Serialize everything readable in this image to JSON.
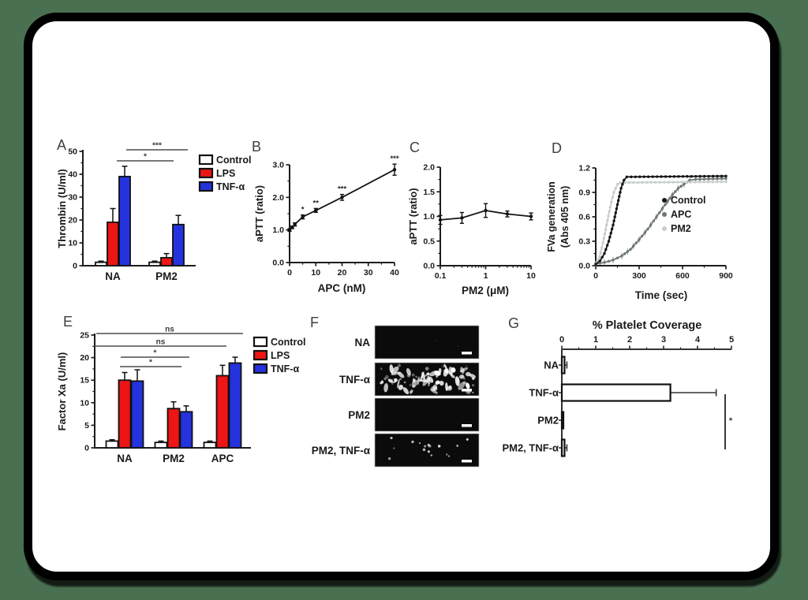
{
  "page": {
    "background_color": "#4a7052",
    "card_color": "#ffffff",
    "card_border_color": "#000000"
  },
  "chart_data": [
    {
      "id": "A",
      "type": "bar",
      "ylabel": "Thrombin (U/ml)",
      "ylim": [
        0,
        50
      ],
      "yticks": [
        0,
        10,
        20,
        30,
        40,
        50
      ],
      "categories": [
        "NA",
        "PM2"
      ],
      "series": [
        {
          "name": "Control",
          "color": "#ffffff",
          "values": [
            1.5,
            1.5
          ],
          "errors": [
            0.5,
            0.5
          ]
        },
        {
          "name": "LPS",
          "color": "#ed1515",
          "values": [
            19,
            3.5
          ],
          "errors": [
            6,
            1.8
          ]
        },
        {
          "name": "TNF-α",
          "color": "#2433dd",
          "values": [
            39,
            18
          ],
          "errors": [
            4.5,
            4
          ]
        }
      ],
      "legend_position": "right",
      "sig": [
        {
          "label": "***",
          "between": [
            "NA",
            "PM2"
          ]
        },
        {
          "label": "*",
          "between": [
            "NA",
            "PM2"
          ]
        }
      ]
    },
    {
      "id": "B",
      "type": "line",
      "xlabel": "APC (nM)",
      "ylabel": "aPTT (ratio)",
      "xlim": [
        0,
        40
      ],
      "ylim": [
        0,
        3
      ],
      "xticks": [
        0,
        10,
        20,
        30,
        40
      ],
      "ytick_labels": [
        "0.0",
        "1.0",
        "2.0",
        "3.0"
      ],
      "x": [
        0,
        1,
        2,
        5,
        10,
        20,
        40
      ],
      "y": [
        1.0,
        1.08,
        1.17,
        1.4,
        1.6,
        2.0,
        2.85
      ],
      "errors": [
        0.04,
        0.04,
        0.05,
        0.06,
        0.06,
        0.09,
        0.17
      ],
      "annotations": [
        {
          "x": 5,
          "label": "*"
        },
        {
          "x": 10,
          "label": "**"
        },
        {
          "x": 20,
          "label": "***"
        },
        {
          "x": 40,
          "label": "***"
        }
      ]
    },
    {
      "id": "C",
      "type": "line",
      "xscale": "log",
      "xlabel": "PM2 (μM)",
      "ylabel": "aPTT (ratio)",
      "xlim": [
        0.1,
        10
      ],
      "ylim": [
        0,
        2
      ],
      "xticks": [
        0.1,
        1,
        10
      ],
      "xtick_labels": [
        "0.1",
        "1",
        "10"
      ],
      "ytick_labels": [
        "0.0",
        "0.5",
        "1.0",
        "1.5",
        "2.0"
      ],
      "x": [
        0.1,
        0.3,
        1,
        3,
        10
      ],
      "y": [
        0.93,
        0.97,
        1.12,
        1.05,
        1.0
      ],
      "errors": [
        0.09,
        0.11,
        0.14,
        0.06,
        0.07
      ],
      "annotations": []
    },
    {
      "id": "D",
      "type": "line",
      "xlabel": "Time (sec)",
      "ylabel_lines": [
        "FVa generation",
        "(Abs 405 nm)"
      ],
      "xlim": [
        0,
        900
      ],
      "ylim": [
        0,
        1.2
      ],
      "xticks": [
        0,
        300,
        600,
        900
      ],
      "ytick_labels": [
        "0.0",
        "0.3",
        "0.6",
        "0.9",
        "1.2"
      ],
      "series": [
        {
          "name": "APC",
          "color": "#6e7776",
          "fuzzy": true,
          "points": [
            [
              0,
              0.02
            ],
            [
              60,
              0.04
            ],
            [
              120,
              0.07
            ],
            [
              180,
              0.12
            ],
            [
              240,
              0.2
            ],
            [
              300,
              0.32
            ],
            [
              360,
              0.45
            ],
            [
              420,
              0.6
            ],
            [
              480,
              0.75
            ],
            [
              530,
              0.87
            ],
            [
              570,
              0.95
            ],
            [
              610,
              1.0
            ],
            [
              650,
              1.05
            ],
            [
              690,
              1.06
            ],
            [
              900,
              1.07
            ]
          ]
        },
        {
          "name": "PM2",
          "color": "#c7cfce",
          "fuzzy": false,
          "points": [
            [
              0,
              0.03
            ],
            [
              25,
              0.1
            ],
            [
              50,
              0.28
            ],
            [
              75,
              0.5
            ],
            [
              100,
              0.72
            ],
            [
              125,
              0.9
            ],
            [
              150,
              1.0
            ],
            [
              170,
              1.02
            ],
            [
              900,
              1.03
            ]
          ]
        },
        {
          "name": "Control",
          "color": "#151515",
          "fuzzy": false,
          "points": [
            [
              0,
              0.02
            ],
            [
              30,
              0.06
            ],
            [
              60,
              0.15
            ],
            [
              90,
              0.3
            ],
            [
              120,
              0.5
            ],
            [
              150,
              0.75
            ],
            [
              175,
              0.95
            ],
            [
              195,
              1.05
            ],
            [
              215,
              1.09
            ],
            [
              900,
              1.1
            ]
          ]
        }
      ],
      "legend": [
        "Control",
        "APC",
        "PM2"
      ],
      "legend_colors": [
        "#151515",
        "#6e7776",
        "#c7cfce"
      ]
    },
    {
      "id": "E",
      "type": "bar",
      "ylabel": "Factor Xa (U/ml)",
      "ylim": [
        0,
        25
      ],
      "yticks": [
        0,
        5,
        10,
        15,
        20,
        25
      ],
      "categories": [
        "NA",
        "PM2",
        "APC"
      ],
      "series": [
        {
          "name": "Control",
          "color": "#ffffff",
          "values": [
            1.5,
            1.2,
            1.2
          ],
          "errors": [
            0.3,
            0.3,
            0.3
          ]
        },
        {
          "name": "LPS",
          "color": "#ed1515",
          "values": [
            15,
            8.7,
            16
          ],
          "errors": [
            1.7,
            1.5,
            2.3
          ]
        },
        {
          "name": "TNF-α",
          "color": "#2433dd",
          "values": [
            14.8,
            8,
            18.8
          ],
          "errors": [
            2.5,
            1.3,
            1.3
          ]
        }
      ],
      "legend_position": "right",
      "sig": [
        {
          "label": "ns",
          "between": [
            "NA",
            "APC"
          ]
        },
        {
          "label": "ns",
          "between": [
            "NA",
            "APC"
          ]
        },
        {
          "label": "*",
          "between": [
            "NA",
            "PM2"
          ]
        },
        {
          "label": "*",
          "between": [
            "NA",
            "PM2"
          ]
        }
      ]
    },
    {
      "id": "F",
      "type": "images",
      "rows": [
        {
          "label": "NA",
          "spots": "none"
        },
        {
          "label": "TNF-α",
          "spots": "dense"
        },
        {
          "label": "PM2",
          "spots": "none"
        },
        {
          "label": "PM2, TNF-α",
          "spots": "sparse"
        }
      ]
    },
    {
      "id": "G",
      "type": "bar",
      "orientation": "horizontal",
      "title": "% Platelet Coverage",
      "xlim": [
        0,
        5
      ],
      "xticks": [
        0,
        1,
        2,
        3,
        4,
        5
      ],
      "categories": [
        "NA",
        "TNF-α",
        "PM2",
        "PM2, TNF-α"
      ],
      "values": [
        0.08,
        3.2,
        0.03,
        0.08
      ],
      "errors": [
        0.07,
        1.35,
        0.02,
        0.07
      ],
      "bar_color": "#ffffff",
      "sig": [
        {
          "label": "*",
          "between": [
            "TNF-α",
            "PM2, TNF-α"
          ]
        }
      ]
    }
  ]
}
